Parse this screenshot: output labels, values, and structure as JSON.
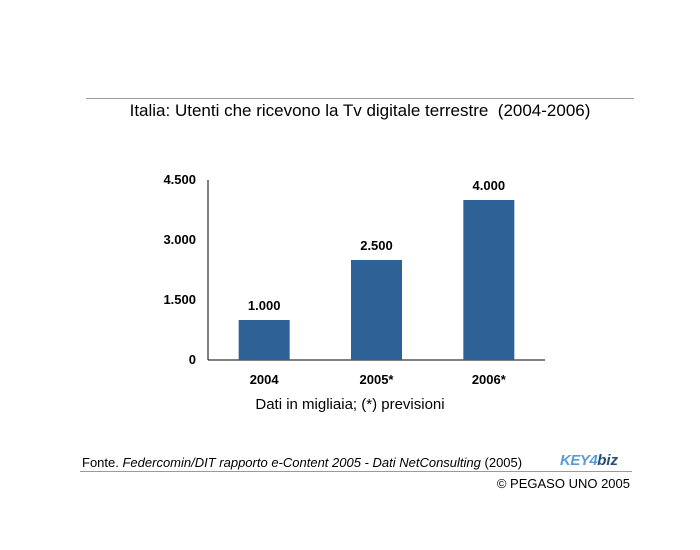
{
  "title": "Italia: Utenti che ricevono la Tv digitale terrestre  (2004-2006)",
  "note": "Dati in migliaia; (*) previsioni",
  "source": {
    "prefix": "Fonte.",
    "citation": "Federcomin/DIT rapporto e-Content 2005 - Dati NetConsulting",
    "year": "(2005)"
  },
  "logo": {
    "part_a": "KEY4",
    "part_b": "biz"
  },
  "copyright": "© PEGASO UNO 2005",
  "colors": {
    "bar": "#2e6196",
    "axis": "#000000"
  },
  "chart_data": {
    "type": "bar",
    "categories": [
      "2004",
      "2005*",
      "2006*"
    ],
    "values": [
      1000,
      2500,
      4000
    ],
    "data_labels": [
      "1.000",
      "2.500",
      "4.000"
    ],
    "title": "Italia: Utenti che ricevono la Tv digitale terrestre  (2004-2006)",
    "xlabel": "",
    "ylabel": "",
    "ylim": [
      0,
      4500
    ],
    "yticks": [
      0,
      1500,
      3000,
      4500
    ],
    "ytick_labels": [
      "0",
      "1.500",
      "3.000",
      "4.500"
    ],
    "grid": false,
    "legend": "none"
  }
}
